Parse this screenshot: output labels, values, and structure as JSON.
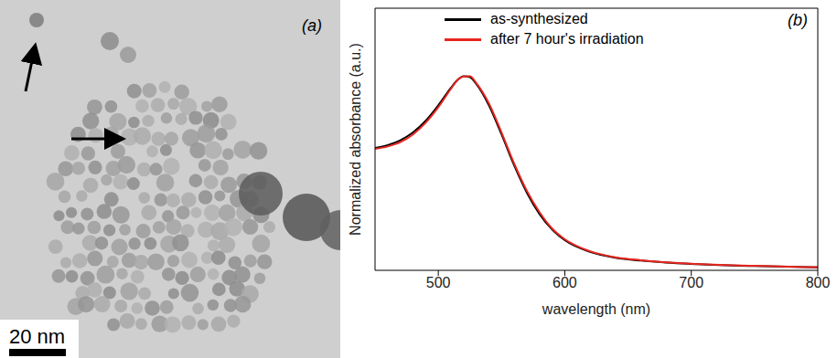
{
  "chart_data": {
    "type": "line",
    "x_label": "wavelength (nm)",
    "y_label": "Normalized absorbance (a.u.)",
    "annotations": [
      "(b)"
    ],
    "x": [
      450,
      460,
      470,
      480,
      490,
      500,
      510,
      515,
      520,
      525,
      530,
      540,
      550,
      560,
      570,
      580,
      590,
      600,
      620,
      640,
      660,
      680,
      700,
      750,
      800
    ],
    "series": [
      {
        "name": "as-synthesized",
        "color": "#000000",
        "values": [
          0.63,
          0.645,
          0.67,
          0.71,
          0.77,
          0.85,
          0.94,
          0.98,
          1.0,
          0.995,
          0.96,
          0.85,
          0.7,
          0.54,
          0.4,
          0.29,
          0.21,
          0.155,
          0.095,
          0.065,
          0.05,
          0.04,
          0.033,
          0.022,
          0.015
        ]
      },
      {
        "name": "after 7 hour's irradiation",
        "color": "#e8251f",
        "values": [
          0.625,
          0.638,
          0.66,
          0.7,
          0.76,
          0.84,
          0.935,
          0.978,
          0.998,
          1.0,
          0.965,
          0.86,
          0.71,
          0.55,
          0.41,
          0.3,
          0.215,
          0.16,
          0.098,
          0.067,
          0.052,
          0.041,
          0.034,
          0.023,
          0.016
        ]
      }
    ],
    "xlim": [
      450,
      800
    ],
    "xticks": [
      500,
      600,
      700,
      800
    ],
    "ylim": [
      0,
      1.35
    ],
    "tick_labels": "x",
    "legend": "upper left"
  },
  "image": {
    "label": "(a)",
    "scale_bar": "20 nm"
  }
}
